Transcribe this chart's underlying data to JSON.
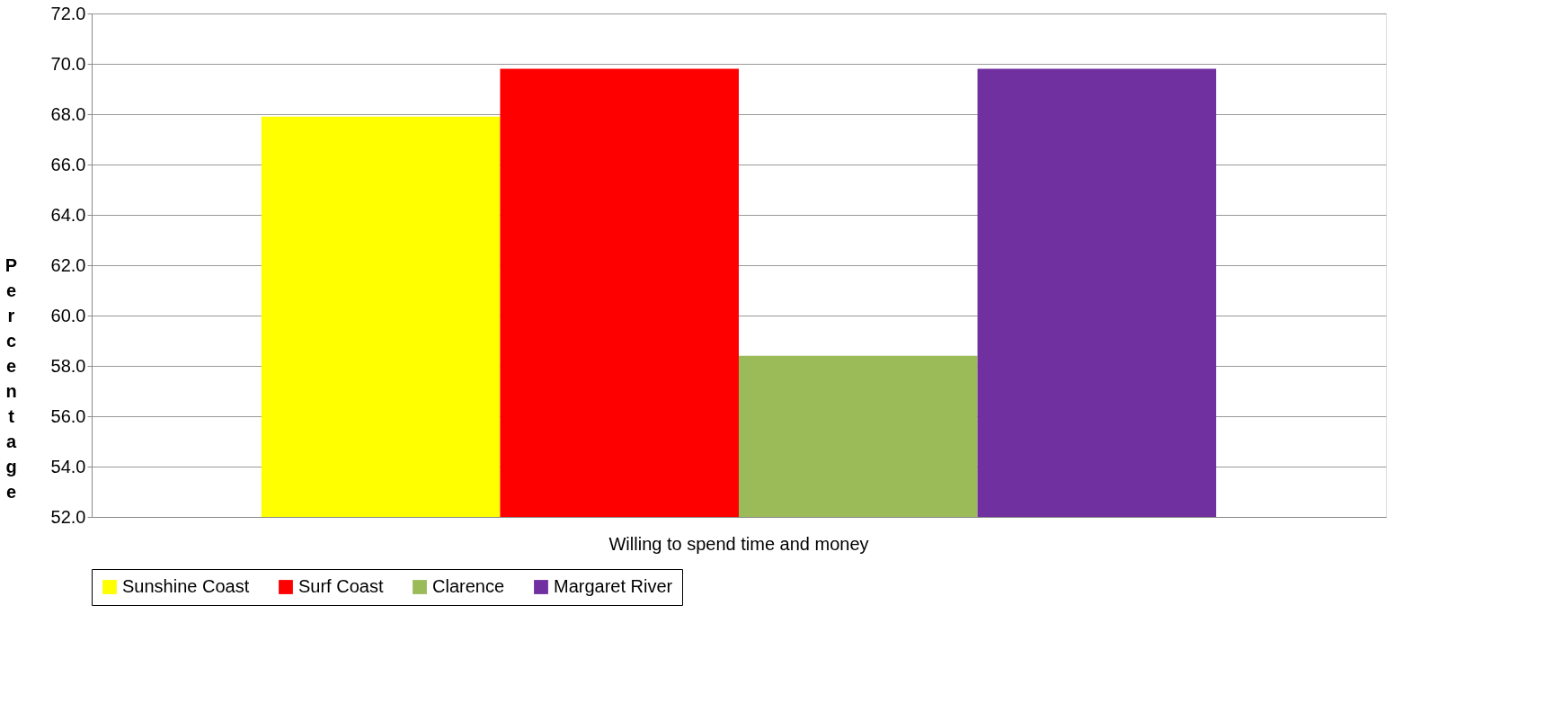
{
  "chart_data": {
    "type": "bar",
    "categories": [
      "Willing to spend time and money"
    ],
    "ylabel": "Percentage",
    "series": [
      {
        "name": "Sunshine Coast",
        "color": "#ffff00",
        "values": [
          67.9
        ]
      },
      {
        "name": "Surf Coast",
        "color": "#ff0000",
        "values": [
          69.8
        ]
      },
      {
        "name": "Clarence",
        "color": "#9bbb59",
        "values": [
          58.4
        ]
      },
      {
        "name": "Margaret River",
        "color": "#7030a0",
        "values": [
          69.8
        ]
      }
    ],
    "ylim": [
      52,
      72
    ],
    "yticks": [
      {
        "value": 52,
        "label": "52.0"
      },
      {
        "value": 54,
        "label": "54.0"
      },
      {
        "value": 56,
        "label": "56.0"
      },
      {
        "value": 58,
        "label": "58.0"
      },
      {
        "value": 60,
        "label": "60.0"
      },
      {
        "value": 62,
        "label": "62.0"
      },
      {
        "value": 64,
        "label": "64.0"
      },
      {
        "value": 66,
        "label": "66.0"
      },
      {
        "value": 68,
        "label": "68.0"
      },
      {
        "value": 70,
        "label": "70.0"
      },
      {
        "value": 72,
        "label": "72.0"
      }
    ],
    "grid": "y",
    "legend": "bottom"
  }
}
